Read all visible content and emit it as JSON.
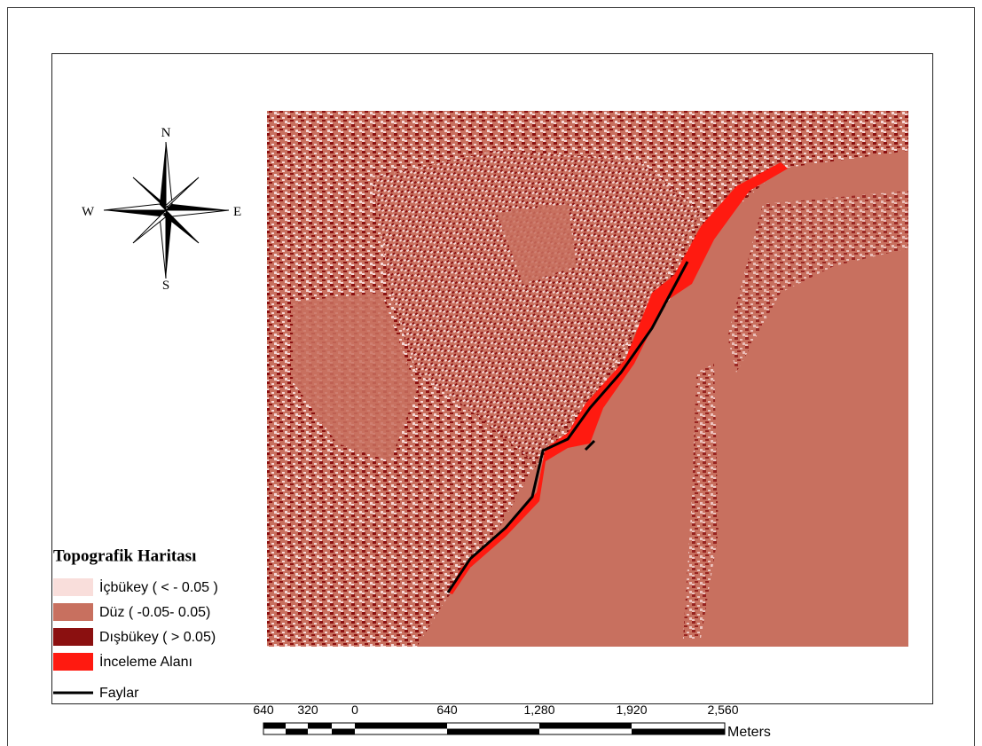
{
  "compass": {
    "north": "N",
    "south": "S",
    "east": "E",
    "west": "W"
  },
  "legend": {
    "title": "Topografik Haritası",
    "items": [
      "İçbükey ( < - 0.05 )",
      "Düz ( -0.05- 0.05)",
      "Dışbükey ( > 0.05)",
      "İnceleme Alanı",
      "Faylar"
    ]
  },
  "scale_bar": {
    "labels": [
      "640",
      "320",
      "0",
      "640",
      "1,280",
      "1,920",
      "2,560"
    ],
    "unit": "Meters"
  }
}
